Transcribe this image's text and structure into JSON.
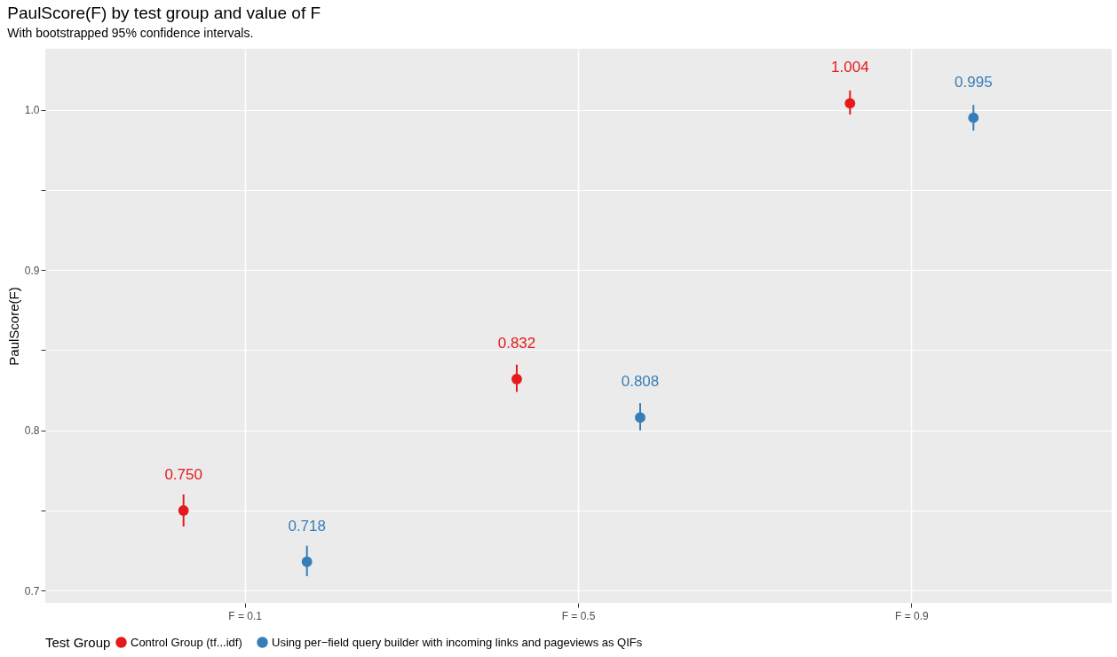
{
  "chart_data": {
    "type": "scatter",
    "title": "PaulScore(F) by test group and value of F",
    "subtitle": "With bootstrapped 95% confidence intervals.",
    "ylabel": "PaulScore(F)",
    "legend_title": "Test Group",
    "categories": [
      "F = 0.1",
      "F = 0.5",
      "F = 0.9"
    ],
    "series": [
      {
        "name": "Control Group (tf...idf)",
        "color": "#e41a1c",
        "values": [
          0.75,
          0.832,
          1.004
        ],
        "errors": [
          [
            0.74,
            0.76
          ],
          [
            0.824,
            0.841
          ],
          [
            0.997,
            1.012
          ]
        ]
      },
      {
        "name": "Using per−field query builder with incoming links and pageviews as QIFs",
        "color": "#377eb8",
        "values": [
          0.718,
          0.808,
          0.995
        ],
        "errors": [
          [
            0.709,
            0.728
          ],
          [
            0.8,
            0.817
          ],
          [
            0.987,
            1.003
          ]
        ]
      }
    ],
    "value_labels": [
      [
        "0.750",
        "0.832",
        "1.004"
      ],
      [
        "0.718",
        "0.808",
        "0.995"
      ]
    ],
    "ylim": [
      0.6924,
      1.038
    ],
    "yticks": [
      0.7,
      {
        "value": 0.75,
        "label": null
      },
      0.8,
      {
        "value": 0.85,
        "label": null
      },
      0.9,
      {
        "value": 0.95,
        "label": null
      },
      {
        "value": 1,
        "label": "1.0"
      }
    ],
    "marker": "circle",
    "grid": true,
    "legend": "bottom"
  }
}
